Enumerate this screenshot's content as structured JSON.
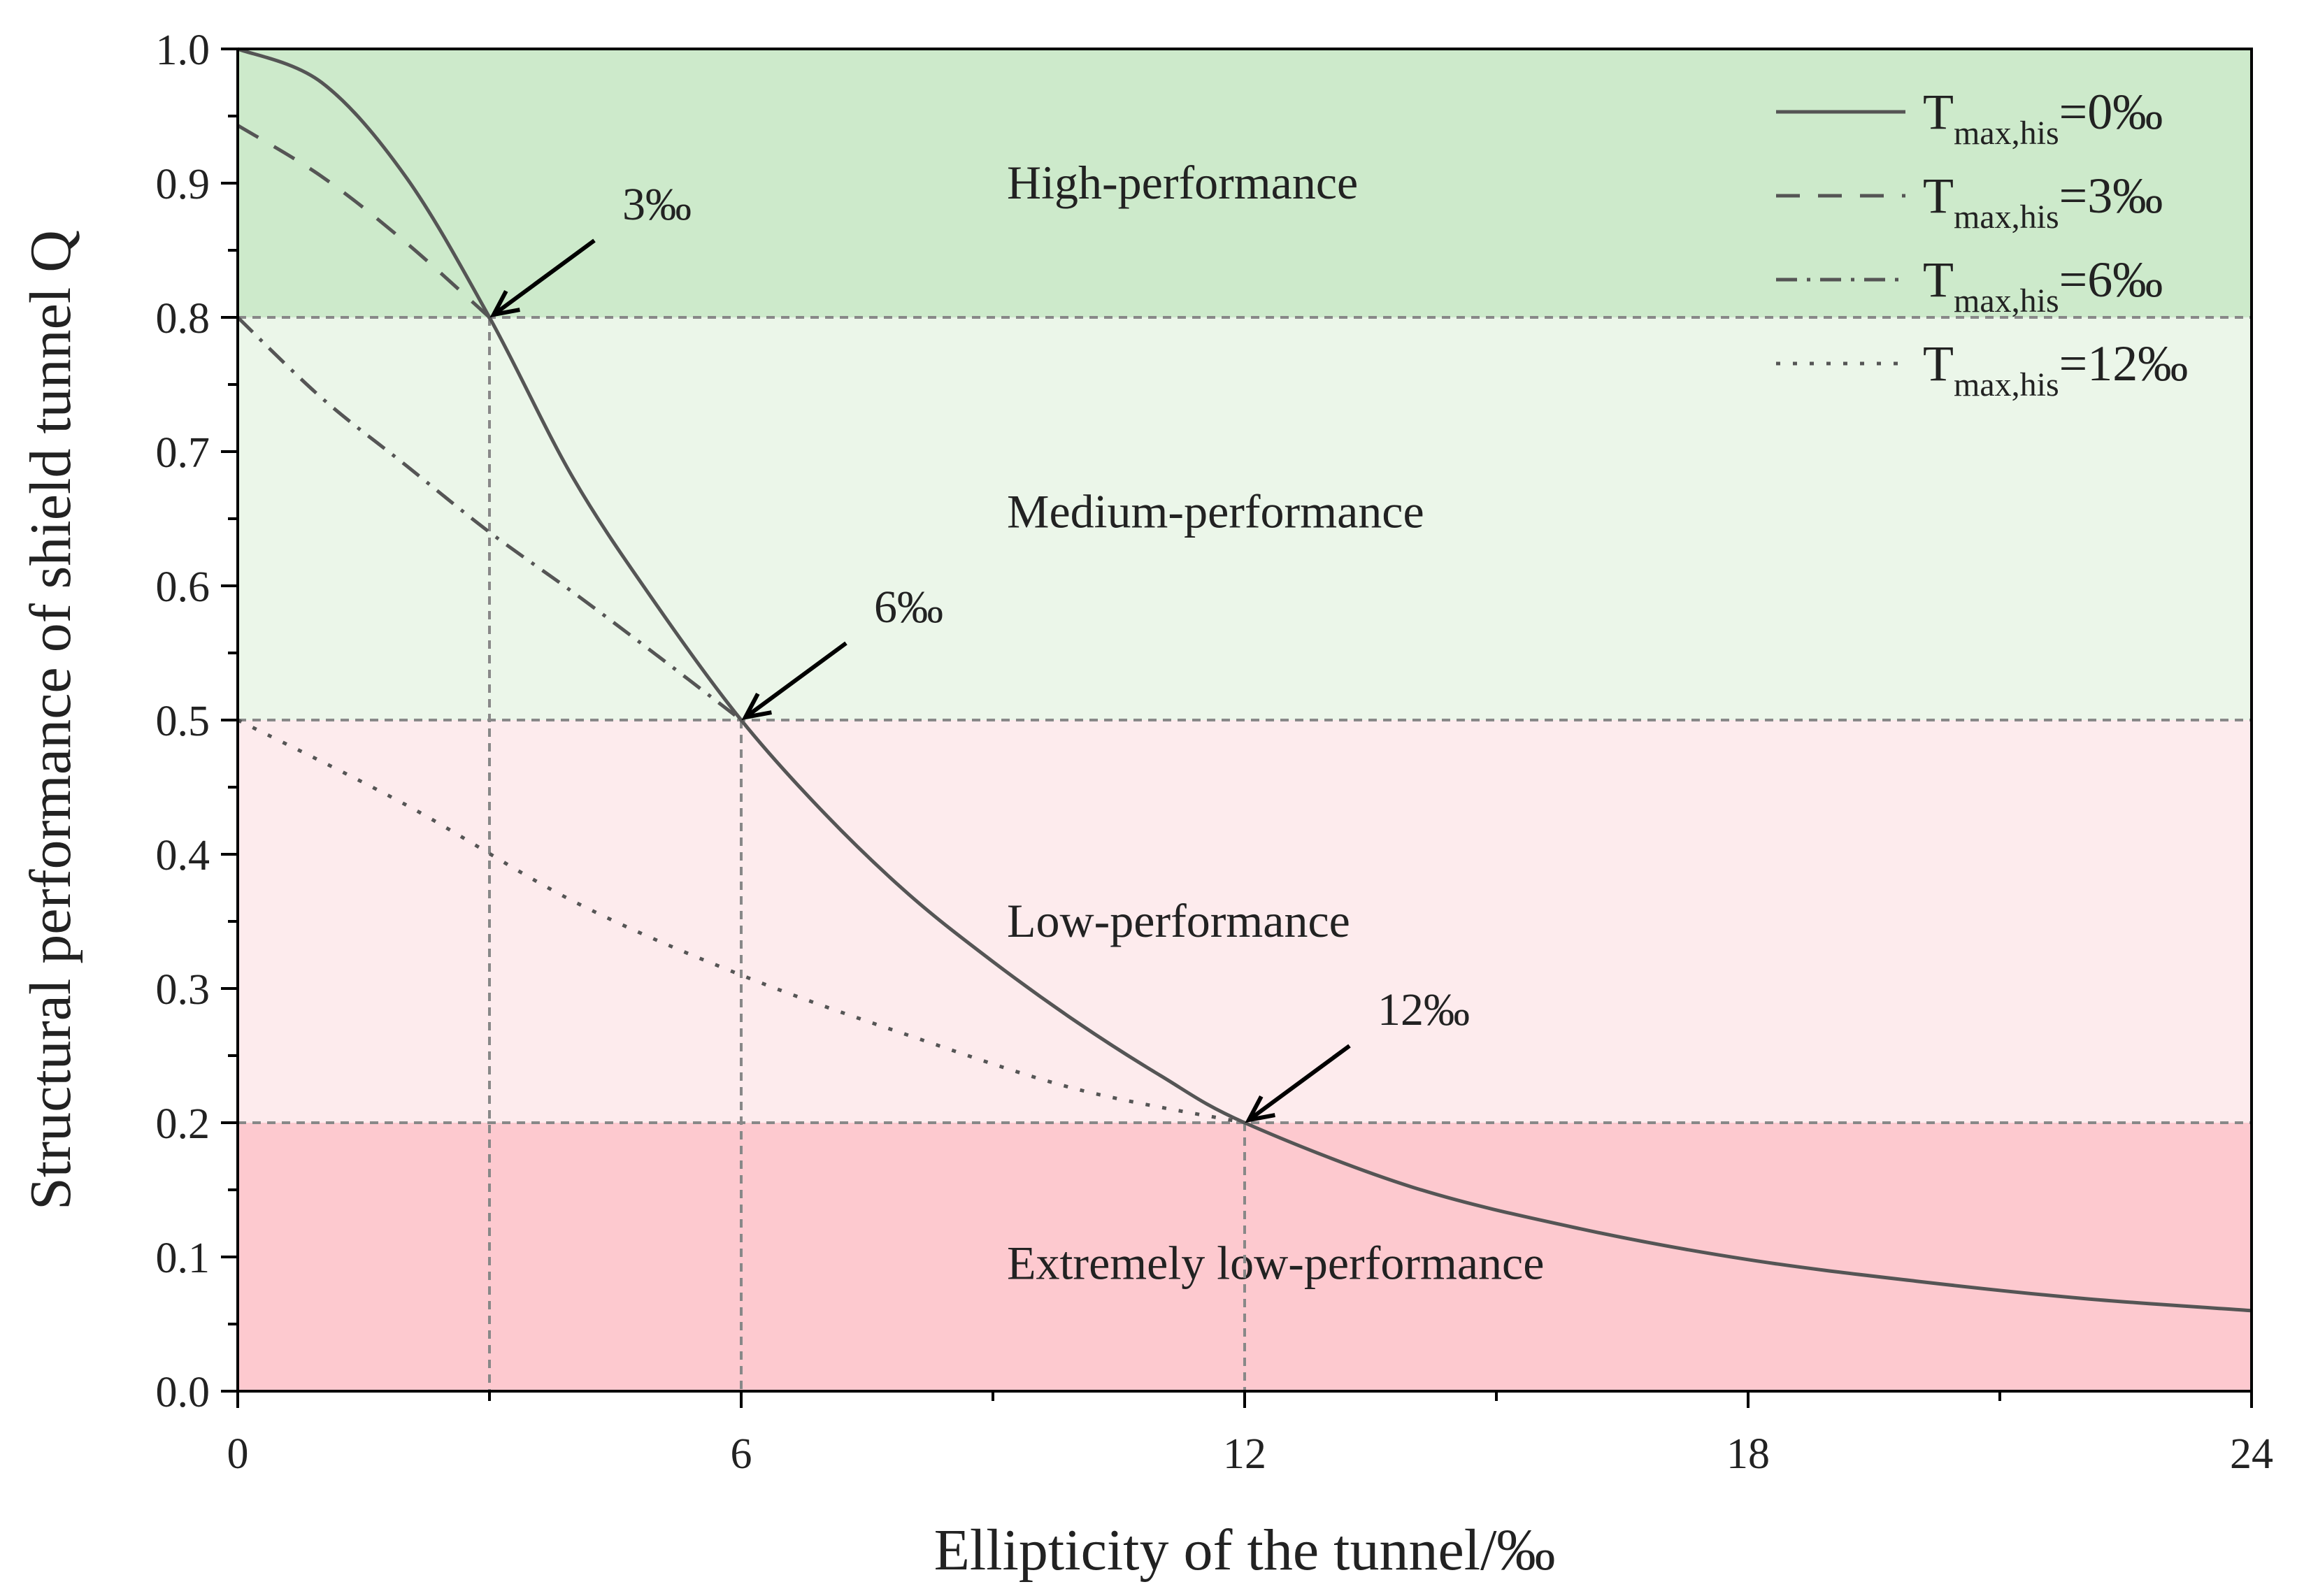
{
  "chart_data": {
    "type": "line",
    "xlabel": "Ellipticity of the tunnel/‰",
    "ylabel": "Structural performance of shield tunnel Q",
    "xlim": [
      0,
      24
    ],
    "ylim": [
      0,
      1.0
    ],
    "x_ticks": [
      "0",
      "6",
      "12",
      "18",
      "24"
    ],
    "x_tick_values": [
      0,
      6,
      12,
      18,
      24
    ],
    "y_ticks": [
      "0.0",
      "0.1",
      "0.2",
      "0.3",
      "0.4",
      "0.5",
      "0.6",
      "0.7",
      "0.8",
      "0.9",
      "1.0"
    ],
    "y_tick_values": [
      0,
      0.1,
      0.2,
      0.3,
      0.4,
      0.5,
      0.6,
      0.7,
      0.8,
      0.9,
      1.0
    ],
    "zones": [
      {
        "label": "High-performance",
        "from": 0.8,
        "to": 1.0,
        "color": "#cdeacb"
      },
      {
        "label": "Medium-performance",
        "from": 0.5,
        "to": 0.8,
        "color": "#ebf6e9"
      },
      {
        "label": "Low-performance",
        "from": 0.2,
        "to": 0.5,
        "color": "#fdebed"
      },
      {
        "label": "Extremely low-performance",
        "from": 0.0,
        "to": 0.2,
        "color": "#fdc9cf"
      }
    ],
    "thresholds": [
      0.8,
      0.5,
      0.2
    ],
    "annotations": [
      {
        "label": "3‰",
        "x": 3,
        "y": 0.8
      },
      {
        "label": "6‰",
        "x": 6,
        "y": 0.5
      },
      {
        "label": "12‰",
        "x": 12,
        "y": 0.2
      }
    ],
    "series": [
      {
        "name_main": "T",
        "name_sub": "max,his",
        "name_value": "=0‰",
        "dash": "solid",
        "x": [
          0,
          1,
          2,
          3,
          4,
          5,
          6,
          7,
          8,
          9,
          10,
          11,
          12,
          14,
          16,
          18,
          20,
          22,
          24
        ],
        "y": [
          1.0,
          0.975,
          0.905,
          0.8,
          0.68,
          0.585,
          0.5,
          0.43,
          0.37,
          0.32,
          0.275,
          0.235,
          0.2,
          0.152,
          0.121,
          0.098,
          0.082,
          0.069,
          0.06
        ]
      },
      {
        "name_main": "T",
        "name_sub": "max,his",
        "name_value": "=3‰",
        "dash": "dashed",
        "x": [
          0,
          1,
          2,
          3
        ],
        "y": [
          0.943,
          0.905,
          0.856,
          0.8
        ]
      },
      {
        "name_main": "T",
        "name_sub": "max,his",
        "name_value": "=6‰",
        "dash": "dashdot",
        "x": [
          0,
          1,
          2,
          3,
          4,
          5,
          6
        ],
        "y": [
          0.8,
          0.74,
          0.69,
          0.64,
          0.595,
          0.548,
          0.5
        ]
      },
      {
        "name_main": "T",
        "name_sub": "max,his",
        "name_value": "=12‰",
        "dash": "dotted",
        "x": [
          0,
          2,
          4,
          6,
          8,
          10,
          12
        ],
        "y": [
          0.5,
          0.437,
          0.365,
          0.31,
          0.265,
          0.225,
          0.2
        ]
      }
    ]
  }
}
